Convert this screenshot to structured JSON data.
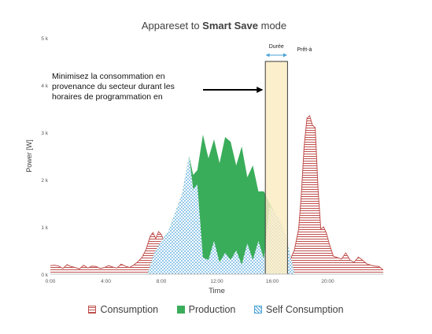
{
  "chart_data": {
    "type": "area",
    "title_prefix": "Appareset to ",
    "title_bold": "Smart Save",
    "title_suffix": " mode",
    "xlabel": "Time",
    "ylabel": "Power [W]",
    "xlim": [
      0,
      24
    ],
    "ylim": [
      0,
      5000
    ],
    "x_ticks": [
      0,
      4,
      8,
      12,
      16,
      20
    ],
    "x_tick_labels": [
      "0:00",
      "4:00",
      "8:00",
      "12:00",
      "16:00",
      "20:00"
    ],
    "y_ticks": [
      0,
      1000,
      2000,
      3000,
      4000,
      5000
    ],
    "y_tick_labels": [
      "0 k",
      "1 k",
      "2 k",
      "3 k",
      "4 k",
      "5 k"
    ],
    "series": [
      {
        "name": "Consumption",
        "color": "#c0504d",
        "x": [
          0,
          0.3,
          0.6,
          0.9,
          1.2,
          1.5,
          1.8,
          2.1,
          2.4,
          2.7,
          3.0,
          3.3,
          3.6,
          3.9,
          4.2,
          4.5,
          4.8,
          5.1,
          5.4,
          5.7,
          6.0,
          6.3,
          6.6,
          6.9,
          7.2,
          7.4,
          7.6,
          7.8,
          8.0,
          8.2,
          8.5,
          9.0,
          9.5,
          10.0,
          10.5,
          11.0,
          11.5,
          12.0,
          12.5,
          13.0,
          13.5,
          14.0,
          14.5,
          15.0,
          15.5,
          16.0,
          16.5,
          17.0,
          17.3,
          17.6,
          17.9,
          18.1,
          18.3,
          18.5,
          18.7,
          18.9,
          19.1,
          19.3,
          19.5,
          19.7,
          19.9,
          20.1,
          20.4,
          20.7,
          21.0,
          21.3,
          21.6,
          21.9,
          22.2,
          22.5,
          22.8,
          23.1,
          23.4,
          23.7,
          24.0
        ],
        "y": [
          180,
          190,
          170,
          120,
          200,
          160,
          140,
          110,
          190,
          130,
          170,
          160,
          120,
          140,
          180,
          150,
          130,
          210,
          170,
          140,
          190,
          260,
          350,
          520,
          800,
          880,
          750,
          900,
          840,
          700,
          450,
          350,
          330,
          320,
          300,
          340,
          300,
          310,
          320,
          300,
          340,
          330,
          350,
          370,
          380,
          350,
          300,
          200,
          300,
          520,
          950,
          1700,
          2700,
          3300,
          3350,
          3150,
          3100,
          1800,
          950,
          1000,
          870,
          650,
          380,
          350,
          320,
          450,
          300,
          250,
          360,
          300,
          220,
          190,
          170,
          160,
          90
        ]
      },
      {
        "name": "Production",
        "color": "#3aad5a",
        "x": [
          7.0,
          7.5,
          8.0,
          8.5,
          9.0,
          9.5,
          10.0,
          10.3,
          10.6,
          11.0,
          11.4,
          11.8,
          12.2,
          12.6,
          13.0,
          13.4,
          13.8,
          14.2,
          14.6,
          15.0,
          15.4,
          15.8,
          16.2,
          16.6,
          17.0,
          17.3,
          17.6
        ],
        "y": [
          0,
          450,
          700,
          900,
          1300,
          1700,
          2500,
          2100,
          2200,
          2950,
          2450,
          2850,
          2350,
          2900,
          2800,
          2300,
          2700,
          2050,
          2300,
          1750,
          1750,
          1500,
          1300,
          1100,
          800,
          400,
          0
        ]
      },
      {
        "name": "Self Consumption",
        "color": "#4aa3d9",
        "x": [
          7.0,
          7.5,
          8.0,
          8.5,
          9.0,
          9.5,
          10.0,
          10.3,
          10.6,
          11.0,
          11.4,
          11.8,
          12.2,
          12.6,
          13.0,
          13.4,
          13.8,
          14.2,
          14.6,
          15.0,
          15.4,
          15.8,
          16.2,
          16.6,
          17.0,
          17.3,
          17.6
        ],
        "y": [
          0,
          450,
          700,
          900,
          1300,
          1700,
          2500,
          1800,
          1900,
          350,
          300,
          700,
          250,
          450,
          300,
          500,
          200,
          650,
          300,
          700,
          320,
          1450,
          1300,
          1100,
          800,
          400,
          0
        ]
      }
    ],
    "annotation": {
      "text": "Minimisez la consommation en provenance du secteur durant les horaires de programmation en",
      "arrow_to_x": 15.5,
      "arrow_y": 3900
    },
    "highlight": {
      "x_start": 15.5,
      "x_end": 17.1,
      "y_top": 4500,
      "fill": "#fbebc1",
      "label_duration": "Durée",
      "label_ready": "Prêt-à"
    },
    "legend": {
      "position": "bottom",
      "items": [
        {
          "label": "Consumption",
          "style": "red-lines"
        },
        {
          "label": "Production",
          "style": "green-solid"
        },
        {
          "label": "Self Consumption",
          "style": "blue-dots"
        }
      ]
    },
    "grid": false
  }
}
